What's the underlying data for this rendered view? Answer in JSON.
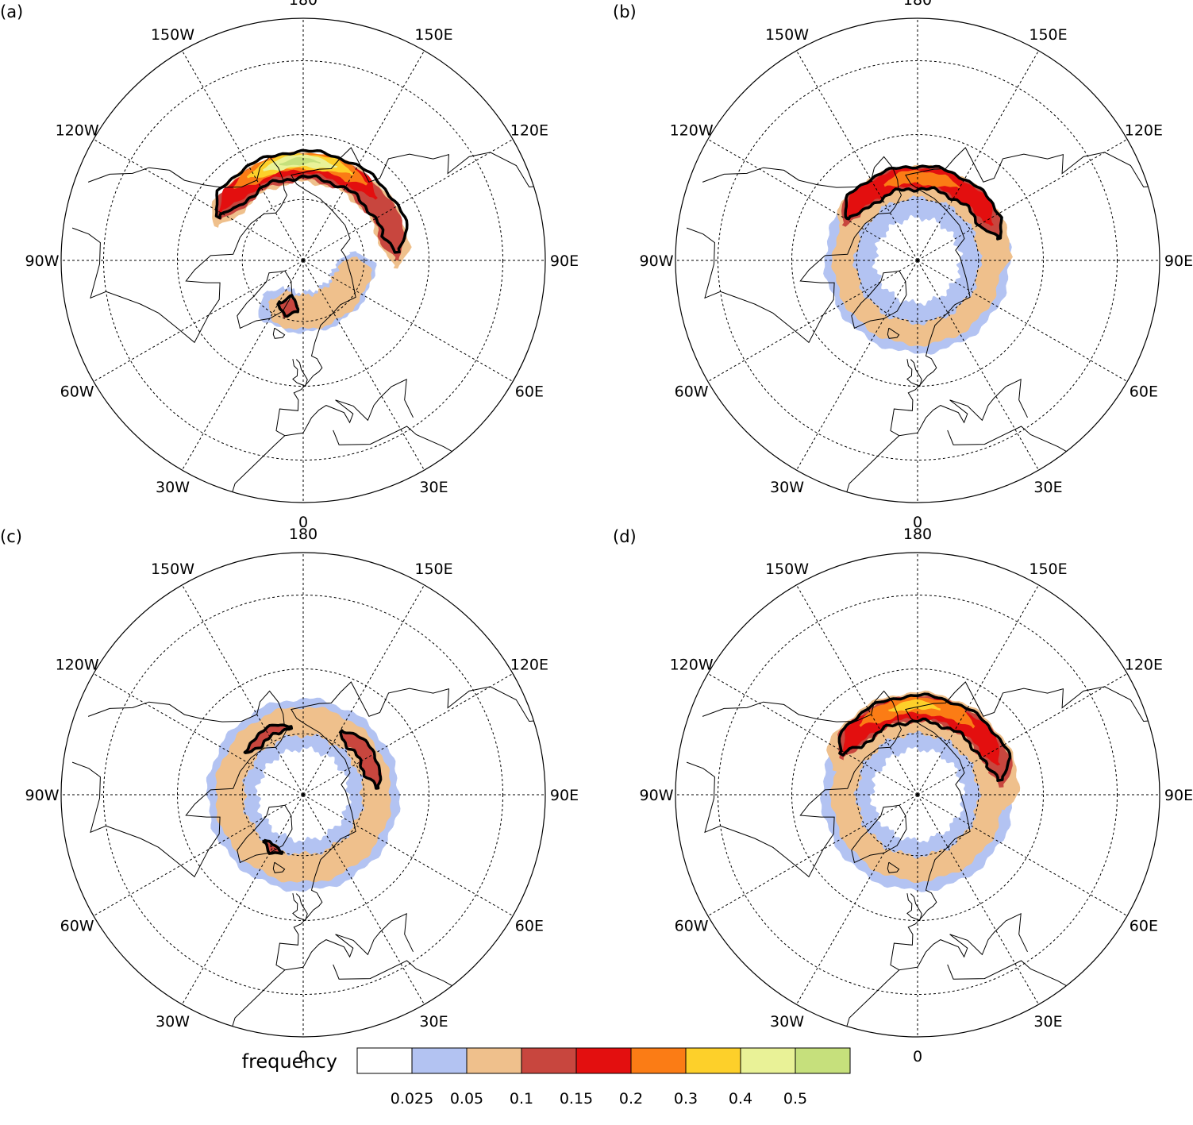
{
  "panels": [
    {
      "label": "(a)",
      "bands": [
        {
          "level": 0.025,
          "center": 73,
          "width": 13,
          "from": -50,
          "to": 100,
          "noise": 1.1
        },
        {
          "level": 0.05,
          "center": 73,
          "width": 11,
          "from": -40,
          "to": 95,
          "noise": 1.0
        },
        {
          "level": 0.1,
          "center": 74,
          "width": 7,
          "from": -30,
          "to": -5,
          "noise": 1.0
        },
        {
          "level": 0.05,
          "center": 60,
          "width": 9,
          "from": 85,
          "to": 250,
          "noise": 1.0
        },
        {
          "level": 0.1,
          "center": 60,
          "width": 8,
          "from": 90,
          "to": 245,
          "noise": 0.9
        },
        {
          "level": 0.15,
          "center": 59,
          "width": 6,
          "from": 130,
          "to": 240,
          "noise": 0.8
        },
        {
          "level": 0.2,
          "center": 58,
          "width": 5.2,
          "from": 140,
          "to": 225,
          "noise": 0.6
        },
        {
          "level": 0.3,
          "center": 58,
          "width": 4.4,
          "from": 150,
          "to": 215,
          "noise": 0.6
        },
        {
          "level": 0.4,
          "center": 58,
          "width": 3.6,
          "from": 160,
          "to": 205,
          "noise": 0.5
        },
        {
          "level": 0.5,
          "center": 58,
          "width": 2.6,
          "from": 170,
          "to": 195,
          "noise": 0.4
        }
      ],
      "contours": [
        {
          "center": 74,
          "width": 7,
          "from": -30,
          "to": -5
        },
        {
          "center": 59,
          "width": 8,
          "from": 95,
          "to": 243
        }
      ]
    },
    {
      "label": "(b)",
      "bands": [
        {
          "level": 0.025,
          "center": 68,
          "width": 16,
          "from": 0,
          "to": 360,
          "noise": 1.2
        },
        {
          "level": 0.05,
          "center": 66,
          "width": 7,
          "from": 0,
          "to": 360,
          "noise": 1.1
        },
        {
          "level": 0.05,
          "center": 64,
          "width": 9,
          "from": 80,
          "to": 250,
          "noise": 1.0
        },
        {
          "level": 0.1,
          "center": 63,
          "width": 7,
          "from": 105,
          "to": 245,
          "noise": 0.9
        },
        {
          "level": 0.15,
          "center": 63,
          "width": 6,
          "from": 115,
          "to": 240,
          "noise": 0.9
        },
        {
          "level": 0.2,
          "center": 63,
          "width": 4,
          "from": 150,
          "to": 205,
          "noise": 0.7
        }
      ],
      "contours": [
        {
          "center": 63,
          "width": 7,
          "from": 105,
          "to": 240
        }
      ]
    },
    {
      "label": "(c)",
      "bands": [
        {
          "level": 0.025,
          "center": 67,
          "width": 16,
          "from": 0,
          "to": 360,
          "noise": 1.2
        },
        {
          "level": 0.05,
          "center": 66,
          "width": 9,
          "from": 0,
          "to": 360,
          "noise": 1.1
        },
        {
          "level": 0.1,
          "center": 66,
          "width": 5,
          "from": 95,
          "to": 150,
          "noise": 0.9
        },
        {
          "level": 0.1,
          "center": 70,
          "width": 4,
          "from": -40,
          "to": -20,
          "noise": 0.9
        },
        {
          "level": 0.1,
          "center": 67,
          "width": 3,
          "from": 190,
          "to": 235,
          "noise": 1.1
        }
      ],
      "contours": [
        {
          "center": 66,
          "width": 5,
          "from": 95,
          "to": 150
        },
        {
          "center": 70,
          "width": 4,
          "from": -40,
          "to": -20
        },
        {
          "center": 67,
          "width": 3,
          "from": 190,
          "to": 235
        }
      ]
    },
    {
      "label": "(d)",
      "bands": [
        {
          "level": 0.025,
          "center": 67,
          "width": 16,
          "from": 0,
          "to": 360,
          "noise": 1.2
        },
        {
          "level": 0.05,
          "center": 66,
          "width": 8,
          "from": 0,
          "to": 360,
          "noise": 1.1
        },
        {
          "level": 0.05,
          "center": 62,
          "width": 10,
          "from": 80,
          "to": 255,
          "noise": 1.0
        },
        {
          "level": 0.1,
          "center": 62,
          "width": 8,
          "from": 95,
          "to": 245,
          "noise": 0.9
        },
        {
          "level": 0.15,
          "center": 62,
          "width": 6.5,
          "from": 110,
          "to": 240,
          "noise": 0.8
        },
        {
          "level": 0.2,
          "center": 61,
          "width": 5,
          "from": 140,
          "to": 220,
          "noise": 0.6
        },
        {
          "level": 0.3,
          "center": 61,
          "width": 3,
          "from": 165,
          "to": 200,
          "noise": 0.5
        }
      ],
      "contours": [
        {
          "center": 62,
          "width": 8,
          "from": 100,
          "to": 242
        }
      ]
    }
  ],
  "lon_labels": [
    "0",
    "30E",
    "60E",
    "90E",
    "120E",
    "150E",
    "180",
    "150W",
    "120W",
    "90W",
    "60W",
    "30W"
  ],
  "legend": {
    "title": "frequency",
    "boundaries": [
      "0.025",
      "0.05",
      "0.1",
      "0.15",
      "0.2",
      "0.3",
      "0.4",
      "0.5"
    ],
    "colors": [
      "#ffffff",
      "#b3c3f2",
      "#efc08c",
      "#c8463e",
      "#e30f0f",
      "#fb7c15",
      "#fdd02a",
      "#e9f297",
      "#c6e07c"
    ]
  },
  "map": {
    "projection": "north-polar-stereographic",
    "boundary_lat": 20,
    "lat_circles": [
      30,
      50,
      70
    ],
    "meridians": [
      0,
      30,
      60,
      90,
      120,
      150,
      180,
      210,
      240,
      270,
      300,
      330
    ]
  }
}
